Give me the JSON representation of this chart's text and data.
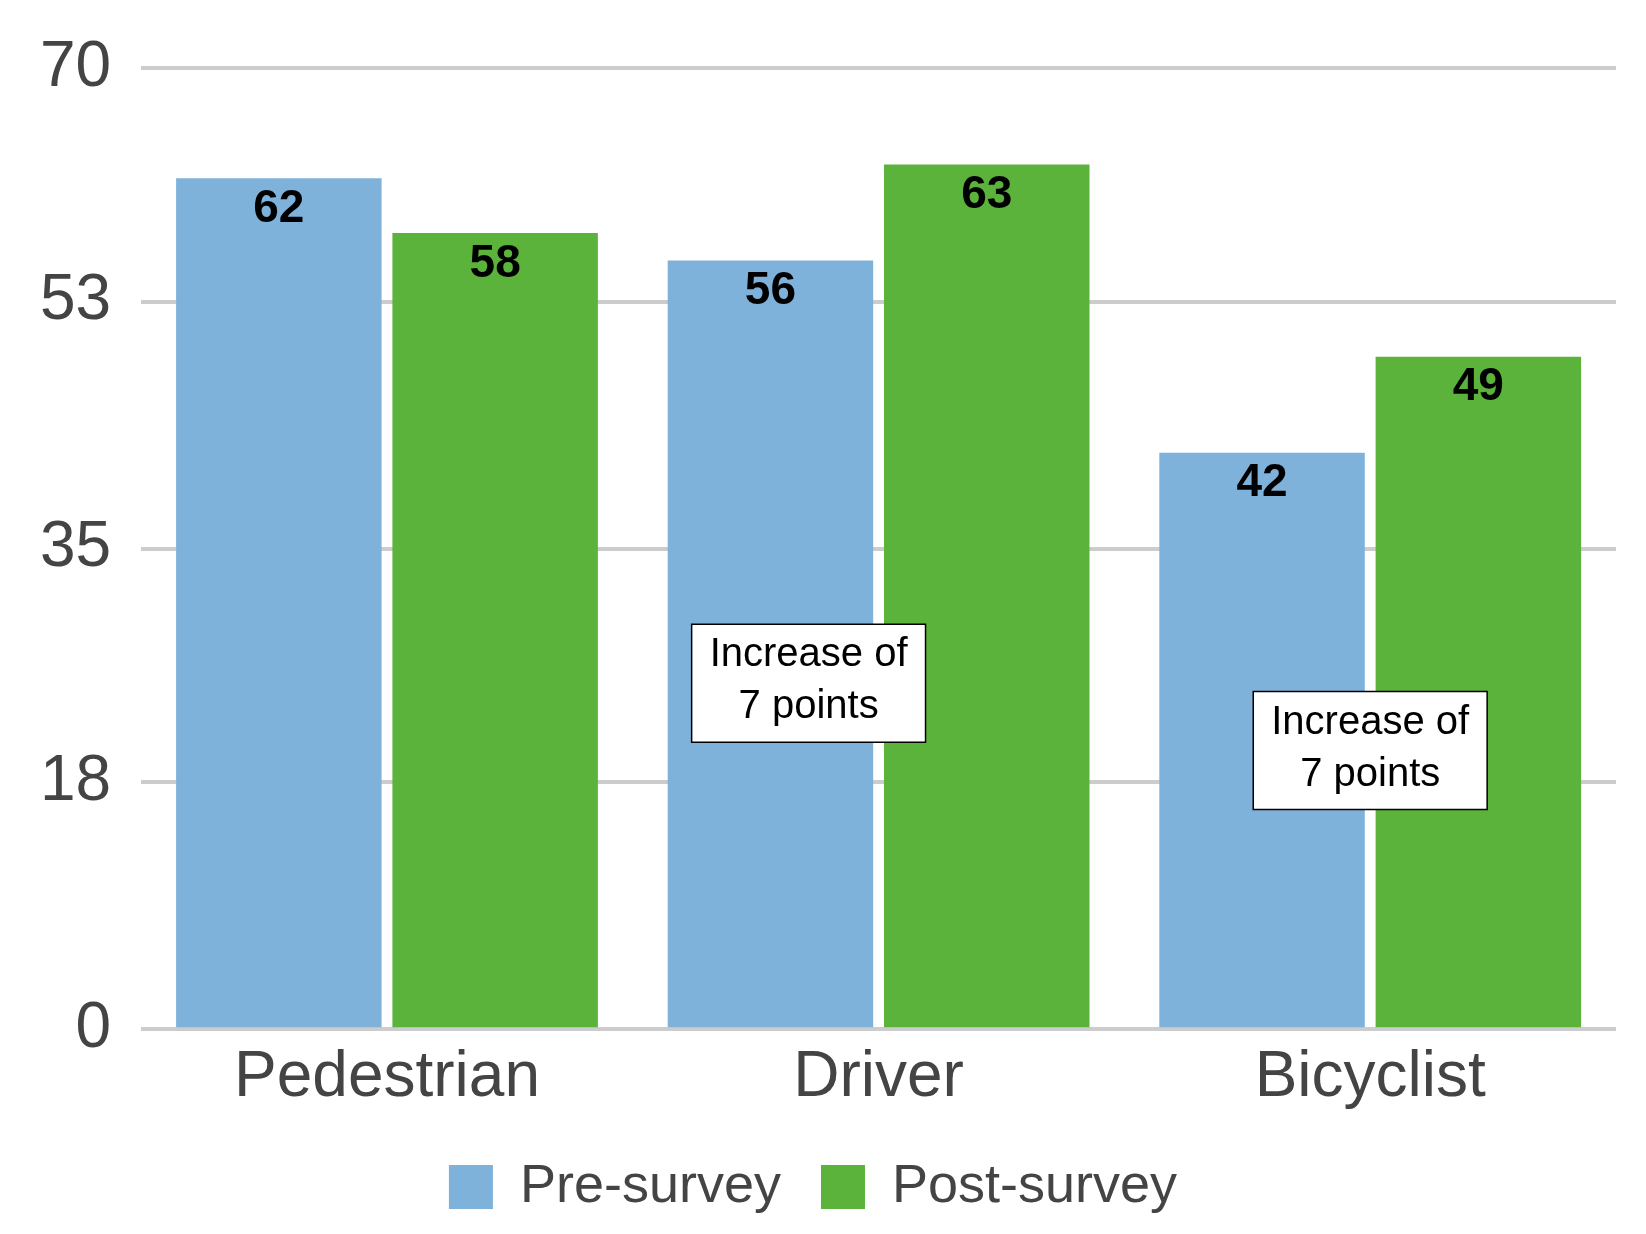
{
  "chart_data": {
    "type": "bar",
    "categories": [
      "Pedestrian",
      "Driver",
      "Bicyclist"
    ],
    "series": [
      {
        "name": "Pre-survey",
        "color": "#7fb2da",
        "values": [
          62,
          56,
          42
        ]
      },
      {
        "name": "Post-survey",
        "color": "#5cb33c",
        "values": [
          58,
          63,
          49
        ]
      }
    ],
    "ylim": [
      0,
      70
    ],
    "yticks": [
      0,
      18,
      35,
      53,
      70
    ],
    "grid": "y",
    "legend": "bottom",
    "data_labels": true,
    "annotations": [
      "Increase of 7 points",
      "Increase of 7 points"
    ]
  }
}
